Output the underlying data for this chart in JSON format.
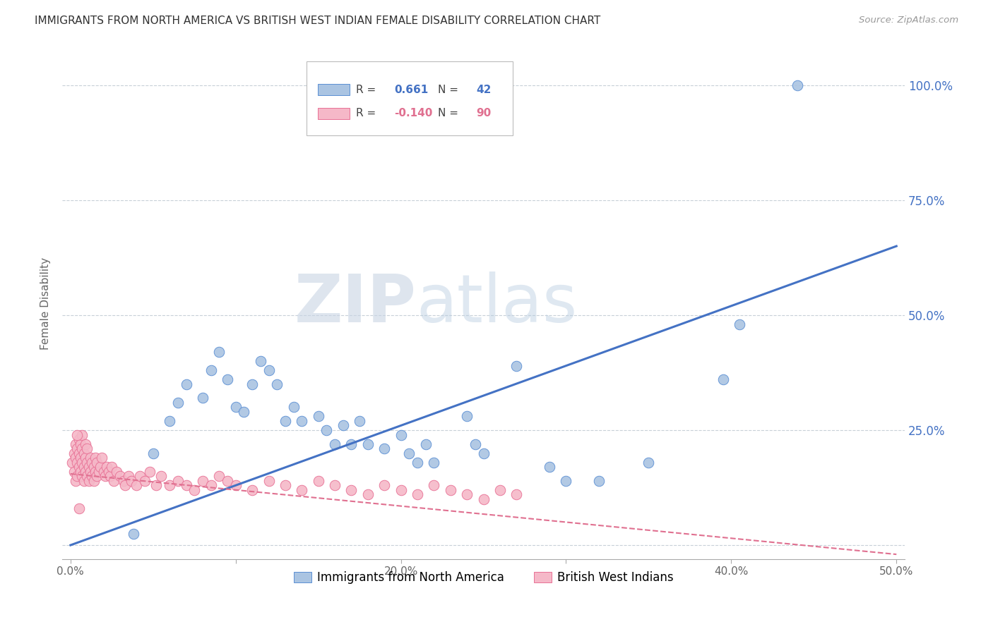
{
  "title": "IMMIGRANTS FROM NORTH AMERICA VS BRITISH WEST INDIAN FEMALE DISABILITY CORRELATION CHART",
  "source": "Source: ZipAtlas.com",
  "ylabel": "Female Disability",
  "xlim": [
    -0.005,
    0.505
  ],
  "ylim": [
    -0.03,
    1.08
  ],
  "yticks": [
    0.0,
    0.25,
    0.5,
    0.75,
    1.0
  ],
  "ytick_labels": [
    "",
    "25.0%",
    "50.0%",
    "75.0%",
    "100.0%"
  ],
  "xticks": [
    0.0,
    0.1,
    0.2,
    0.3,
    0.4,
    0.5
  ],
  "xtick_labels": [
    "0.0%",
    "",
    "20.0%",
    "",
    "40.0%",
    "50.0%"
  ],
  "blue_R": 0.661,
  "blue_N": 42,
  "pink_R": -0.14,
  "pink_N": 90,
  "blue_color": "#aac4e2",
  "blue_edge_color": "#5b8fd4",
  "blue_line_color": "#4472c4",
  "pink_color": "#f5b8c8",
  "pink_edge_color": "#e87095",
  "pink_line_color": "#e07090",
  "watermark": "ZIPAtlas",
  "watermark_color": "#ccd8e8",
  "background_color": "#ffffff",
  "grid_color": "#c8d0d8",
  "legend_label_blue": "Immigrants from North America",
  "legend_label_pink": "British West Indians",
  "blue_line_x0": 0.0,
  "blue_line_y0": 0.0,
  "blue_line_x1": 0.5,
  "blue_line_y1": 0.65,
  "pink_line_x0": 0.0,
  "pink_line_y0": 0.155,
  "pink_line_x1": 0.5,
  "pink_line_y1": -0.02,
  "blue_scatter_x": [
    0.038,
    0.05,
    0.06,
    0.065,
    0.07,
    0.08,
    0.085,
    0.09,
    0.095,
    0.1,
    0.105,
    0.11,
    0.115,
    0.12,
    0.125,
    0.13,
    0.135,
    0.14,
    0.15,
    0.155,
    0.16,
    0.165,
    0.17,
    0.175,
    0.18,
    0.19,
    0.2,
    0.205,
    0.21,
    0.215,
    0.22,
    0.24,
    0.245,
    0.25,
    0.27,
    0.29,
    0.3,
    0.32,
    0.35,
    0.395,
    0.405,
    0.44
  ],
  "blue_scatter_y": [
    0.025,
    0.2,
    0.27,
    0.31,
    0.35,
    0.32,
    0.38,
    0.42,
    0.36,
    0.3,
    0.29,
    0.35,
    0.4,
    0.38,
    0.35,
    0.27,
    0.3,
    0.27,
    0.28,
    0.25,
    0.22,
    0.26,
    0.22,
    0.27,
    0.22,
    0.21,
    0.24,
    0.2,
    0.18,
    0.22,
    0.18,
    0.28,
    0.22,
    0.2,
    0.39,
    0.17,
    0.14,
    0.14,
    0.18,
    0.36,
    0.48,
    1.0
  ],
  "pink_scatter_x": [
    0.001,
    0.002,
    0.002,
    0.003,
    0.003,
    0.003,
    0.004,
    0.004,
    0.004,
    0.005,
    0.005,
    0.005,
    0.006,
    0.006,
    0.006,
    0.007,
    0.007,
    0.007,
    0.007,
    0.008,
    0.008,
    0.008,
    0.009,
    0.009,
    0.009,
    0.01,
    0.01,
    0.01,
    0.011,
    0.011,
    0.012,
    0.012,
    0.013,
    0.013,
    0.014,
    0.014,
    0.015,
    0.015,
    0.016,
    0.016,
    0.017,
    0.018,
    0.019,
    0.02,
    0.021,
    0.022,
    0.023,
    0.024,
    0.025,
    0.026,
    0.028,
    0.03,
    0.032,
    0.033,
    0.035,
    0.037,
    0.04,
    0.042,
    0.045,
    0.048,
    0.052,
    0.055,
    0.06,
    0.065,
    0.07,
    0.075,
    0.08,
    0.085,
    0.09,
    0.095,
    0.1,
    0.11,
    0.12,
    0.13,
    0.14,
    0.15,
    0.16,
    0.17,
    0.18,
    0.19,
    0.2,
    0.21,
    0.22,
    0.23,
    0.24,
    0.25,
    0.26,
    0.27,
    0.004,
    0.005
  ],
  "pink_scatter_y": [
    0.18,
    0.16,
    0.2,
    0.14,
    0.19,
    0.22,
    0.15,
    0.18,
    0.21,
    0.17,
    0.2,
    0.23,
    0.16,
    0.19,
    0.22,
    0.15,
    0.18,
    0.21,
    0.24,
    0.14,
    0.17,
    0.2,
    0.16,
    0.19,
    0.22,
    0.15,
    0.18,
    0.21,
    0.14,
    0.17,
    0.16,
    0.19,
    0.15,
    0.18,
    0.14,
    0.17,
    0.16,
    0.19,
    0.15,
    0.18,
    0.16,
    0.17,
    0.19,
    0.16,
    0.15,
    0.17,
    0.16,
    0.15,
    0.17,
    0.14,
    0.16,
    0.15,
    0.14,
    0.13,
    0.15,
    0.14,
    0.13,
    0.15,
    0.14,
    0.16,
    0.13,
    0.15,
    0.13,
    0.14,
    0.13,
    0.12,
    0.14,
    0.13,
    0.15,
    0.14,
    0.13,
    0.12,
    0.14,
    0.13,
    0.12,
    0.14,
    0.13,
    0.12,
    0.11,
    0.13,
    0.12,
    0.11,
    0.13,
    0.12,
    0.11,
    0.1,
    0.12,
    0.11,
    0.24,
    0.08
  ]
}
